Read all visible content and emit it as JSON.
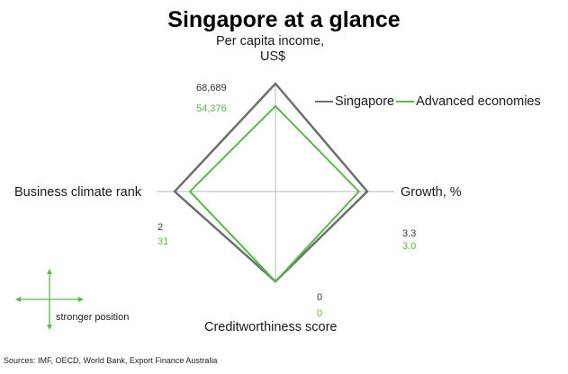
{
  "chart_data": {
    "type": "radar",
    "title": "Singapore at a glance",
    "axes": [
      {
        "name": "Per capita income, US$",
        "label_lines": [
          "Per capita income,",
          "US$"
        ]
      },
      {
        "name": "Growth, %",
        "label_lines": [
          "Growth, %"
        ]
      },
      {
        "name": "Creditworthiness score",
        "label_lines": [
          "Creditworthiness score"
        ]
      },
      {
        "name": "Business climate rank",
        "label_lines": [
          "Business climate rank"
        ]
      }
    ],
    "series": [
      {
        "name": "Singapore",
        "color": "#6d6e71",
        "values": [
          68689,
          3.3,
          0,
          2
        ],
        "labels": [
          "68,689",
          "3.3",
          "0",
          "2"
        ]
      },
      {
        "name": "Advanced economies",
        "color": "#5cb84a",
        "values": [
          54376,
          3.0,
          0,
          31
        ],
        "labels": [
          "54,376",
          "3.0",
          "0",
          "31"
        ]
      }
    ],
    "legend_position": "top-right",
    "key_note": "stronger position",
    "source": "Sources: IMF, OECD, World Bank, Export Finance Australia"
  }
}
